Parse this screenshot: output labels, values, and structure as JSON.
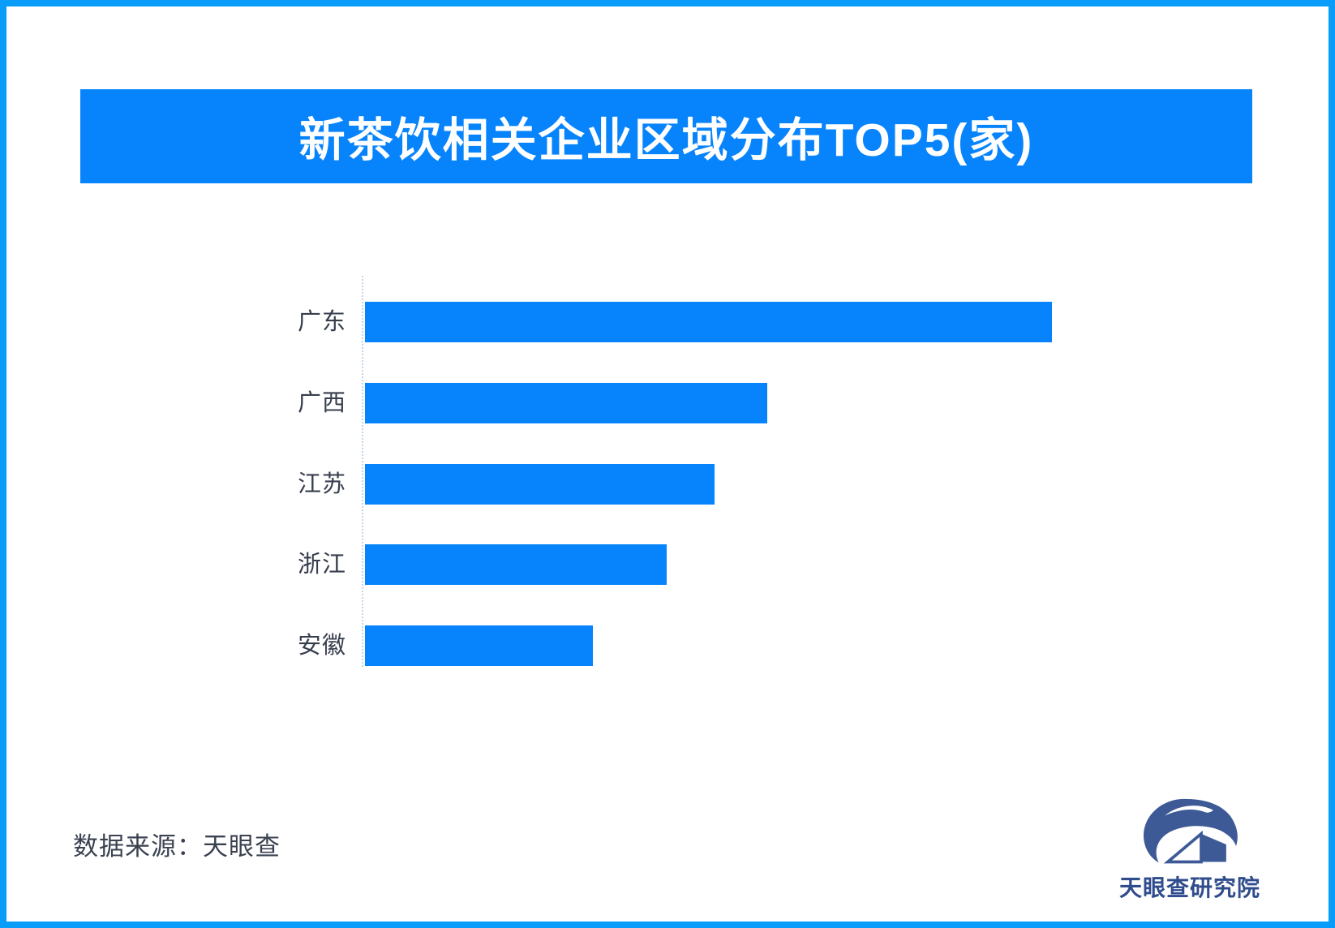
{
  "page": {
    "background": "#FFFFFF",
    "frame_border_color": "#099CF8"
  },
  "banner": {
    "title": "新茶饮相关企业区域分布TOP5(家)",
    "bg_color": "#0784FC",
    "text_color": "#FFFFFF"
  },
  "chart_data": {
    "type": "bar",
    "orientation": "horizontal",
    "title": "新茶饮相关企业区域分布TOP5(家)",
    "categories": [
      "广东",
      "广西",
      "江苏",
      "浙江",
      "安徽"
    ],
    "values": [
      100,
      58.6,
      50.9,
      43.9,
      33.2
    ],
    "values_unit": "relative bar length as % of longest bar; no numeric value labels or axis ticks are shown in the image",
    "bar_color": "#0784FC",
    "category_label_color": "#373E4D",
    "axis_baseline": "dotted light vertical line at left of bars",
    "grid": "off",
    "legend": "none"
  },
  "footer": {
    "source_label": "数据来源：天眼查",
    "logo_text": "天眼查研究院",
    "logo_color": "#3E5A96",
    "logo_text_color": "#2F4C8C"
  }
}
